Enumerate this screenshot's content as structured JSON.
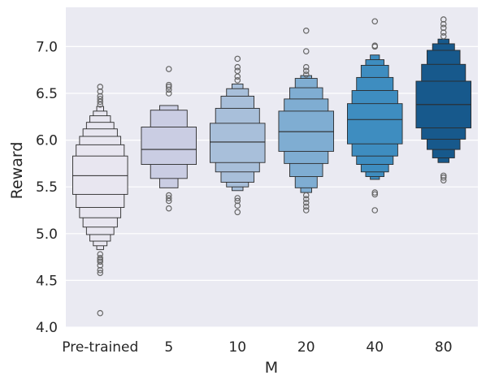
{
  "chart_data": {
    "type": "boxenplot",
    "xlabel": "M",
    "ylabel": "Reward",
    "ylim": [
      4.0,
      7.42
    ],
    "yticks": [
      "4.0",
      "4.5",
      "5.0",
      "5.5",
      "6.0",
      "6.5",
      "7.0"
    ],
    "ytick_values": [
      4.0,
      4.5,
      5.0,
      5.5,
      6.0,
      6.5,
      7.0
    ],
    "grid": true,
    "legend": "none",
    "colors": {
      "background": "#eaeaf2",
      "grid": "#ffffff",
      "edge": "#2b2b2b",
      "outlier": "#666666"
    },
    "categories": [
      "Pre-trained",
      "5",
      "10",
      "20",
      "40",
      "80"
    ],
    "series": [
      {
        "category": "Pre-trained",
        "color": "#e8e6f0",
        "median": 5.62,
        "levels": [
          [
            5.42,
            5.83
          ],
          [
            5.28,
            5.95
          ],
          [
            5.17,
            6.04
          ],
          [
            5.07,
            6.12
          ],
          [
            4.99,
            6.19
          ],
          [
            4.92,
            6.26
          ],
          [
            4.87,
            6.31
          ],
          [
            4.83,
            6.36
          ]
        ],
        "outliers": [
          4.15,
          4.58,
          4.61,
          4.66,
          4.7,
          4.72,
          4.74,
          4.78,
          6.38,
          6.41,
          6.44,
          6.47,
          6.52,
          6.57
        ]
      },
      {
        "category": "5",
        "color": "#cacde3",
        "median": 5.9,
        "levels": [
          [
            5.74,
            6.14
          ],
          [
            5.59,
            6.32
          ],
          [
            5.49,
            6.37
          ]
        ],
        "outliers": [
          5.27,
          5.35,
          5.38,
          5.41,
          6.5,
          6.54,
          6.57,
          6.59,
          6.76
        ]
      },
      {
        "category": "10",
        "color": "#a8bfda",
        "median": 5.98,
        "levels": [
          [
            5.76,
            6.18
          ],
          [
            5.66,
            6.34
          ],
          [
            5.55,
            6.47
          ],
          [
            5.5,
            6.55
          ],
          [
            5.46,
            6.6
          ]
        ],
        "outliers": [
          5.23,
          5.3,
          5.35,
          5.38,
          6.64,
          6.68,
          6.74,
          6.78,
          6.87
        ]
      },
      {
        "category": "20",
        "color": "#7fadd2",
        "median": 6.09,
        "levels": [
          [
            5.88,
            6.31
          ],
          [
            5.75,
            6.44
          ],
          [
            5.61,
            6.56
          ],
          [
            5.49,
            6.66
          ],
          [
            5.44,
            6.69
          ]
        ],
        "outliers": [
          5.25,
          5.29,
          5.33,
          5.37,
          5.41,
          6.7,
          6.74,
          6.78,
          6.95,
          7.17
        ]
      },
      {
        "category": "40",
        "color": "#3e8dc0",
        "median": 6.22,
        "levels": [
          [
            5.96,
            6.39
          ],
          [
            5.83,
            6.53
          ],
          [
            5.74,
            6.67
          ],
          [
            5.66,
            6.8
          ],
          [
            5.61,
            6.86
          ],
          [
            5.58,
            6.91
          ]
        ],
        "outliers": [
          5.25,
          5.42,
          5.44,
          7.0,
          7.01,
          7.27
        ]
      },
      {
        "category": "80",
        "color": "#17598c",
        "median": 6.38,
        "levels": [
          [
            6.13,
            6.63
          ],
          [
            6.01,
            6.81
          ],
          [
            5.9,
            6.96
          ],
          [
            5.81,
            7.03
          ],
          [
            5.76,
            7.08
          ]
        ],
        "outliers": [
          5.57,
          5.6,
          5.62,
          7.11,
          7.15,
          7.2,
          7.24,
          7.29
        ]
      }
    ]
  }
}
